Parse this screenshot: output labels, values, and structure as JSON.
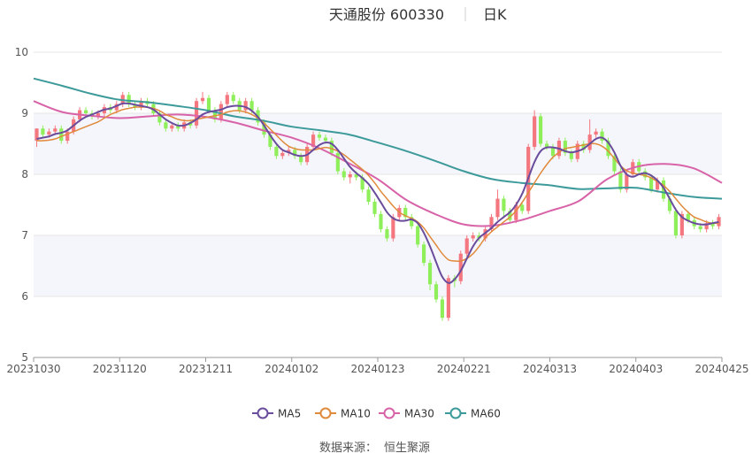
{
  "header": {
    "title": "天通股份 600330",
    "period": "日K"
  },
  "source": {
    "label": "数据来源：",
    "name": "恒生聚源"
  },
  "colors": {
    "up": "#f4777f",
    "down": "#8fef5a",
    "ma5": "#6a4c9c",
    "ma10": "#e08a3c",
    "ma30": "#d863a8",
    "ma60": "#3d9a9a",
    "band": "#f5f6fb",
    "grid": "#e6e6e6",
    "axis": "#999999",
    "text": "#555555"
  },
  "chart_data": {
    "type": "candlestick",
    "ylim": [
      5,
      10
    ],
    "yticks": [
      5,
      6,
      7,
      8,
      9,
      10
    ],
    "xlabels": [
      "20231030",
      "20231120",
      "20231211",
      "20240102",
      "20240123",
      "20240221",
      "20240313",
      "20240403",
      "20240425"
    ],
    "legend_position": "bottom",
    "series": [
      {
        "name": "MA5",
        "key": "ma5"
      },
      {
        "name": "MA10",
        "key": "ma10"
      },
      {
        "name": "MA30",
        "key": "ma30"
      },
      {
        "name": "MA60",
        "key": "ma60"
      }
    ],
    "candles": [
      [
        8.55,
        8.75,
        8.75,
        8.45
      ],
      [
        8.75,
        8.65,
        8.8,
        8.6
      ],
      [
        8.65,
        8.7,
        8.75,
        8.6
      ],
      [
        8.7,
        8.75,
        8.8,
        8.65
      ],
      [
        8.75,
        8.55,
        8.8,
        8.5
      ],
      [
        8.55,
        8.7,
        8.75,
        8.5
      ],
      [
        8.7,
        8.9,
        8.95,
        8.65
      ],
      [
        8.9,
        9.05,
        9.1,
        8.85
      ],
      [
        9.05,
        9.0,
        9.1,
        8.95
      ],
      [
        9.0,
        8.95,
        9.05,
        8.9
      ],
      [
        8.95,
        9.0,
        9.05,
        8.9
      ],
      [
        9.0,
        9.1,
        9.15,
        8.95
      ],
      [
        9.1,
        9.05,
        9.15,
        9.0
      ],
      [
        9.05,
        9.15,
        9.2,
        9.0
      ],
      [
        9.15,
        9.3,
        9.35,
        9.1
      ],
      [
        9.3,
        9.15,
        9.35,
        9.1
      ],
      [
        9.15,
        9.1,
        9.2,
        9.05
      ],
      [
        9.1,
        9.2,
        9.25,
        9.05
      ],
      [
        9.2,
        9.15,
        9.25,
        9.1
      ],
      [
        9.15,
        9.0,
        9.2,
        8.95
      ],
      [
        9.0,
        8.85,
        9.05,
        8.8
      ],
      [
        8.85,
        8.75,
        8.9,
        8.7
      ],
      [
        8.75,
        8.8,
        8.85,
        8.7
      ],
      [
        8.8,
        8.75,
        8.85,
        8.7
      ],
      [
        8.75,
        8.85,
        8.9,
        8.7
      ],
      [
        8.85,
        8.8,
        8.9,
        8.75
      ],
      [
        8.8,
        9.2,
        9.25,
        8.75
      ],
      [
        9.2,
        9.25,
        9.35,
        9.15
      ],
      [
        9.25,
        9.05,
        9.3,
        9.0
      ],
      [
        9.05,
        8.9,
        9.1,
        8.85
      ],
      [
        8.9,
        9.15,
        9.2,
        8.85
      ],
      [
        9.15,
        9.3,
        9.35,
        9.1
      ],
      [
        9.3,
        9.2,
        9.35,
        9.15
      ],
      [
        9.2,
        9.05,
        9.25,
        9.0
      ],
      [
        9.05,
        9.2,
        9.25,
        9.0
      ],
      [
        9.2,
        9.05,
        9.25,
        9.0
      ],
      [
        9.05,
        8.85,
        9.1,
        8.8
      ],
      [
        8.85,
        8.65,
        8.9,
        8.6
      ],
      [
        8.65,
        8.45,
        8.7,
        8.4
      ],
      [
        8.45,
        8.3,
        8.5,
        8.25
      ],
      [
        8.3,
        8.35,
        8.4,
        8.25
      ],
      [
        8.35,
        8.4,
        8.45,
        8.3
      ],
      [
        8.4,
        8.3,
        8.45,
        8.25
      ],
      [
        8.3,
        8.2,
        8.35,
        8.15
      ],
      [
        8.2,
        8.45,
        8.5,
        8.15
      ],
      [
        8.45,
        8.65,
        8.7,
        8.4
      ],
      [
        8.65,
        8.6,
        8.7,
        8.55
      ],
      [
        8.6,
        8.55,
        8.65,
        8.5
      ],
      [
        8.55,
        8.35,
        8.6,
        8.3
      ],
      [
        8.35,
        8.05,
        8.4,
        8.0
      ],
      [
        8.05,
        7.95,
        8.1,
        7.9
      ],
      [
        7.95,
        8.0,
        8.05,
        7.85
      ],
      [
        8.0,
        7.95,
        8.05,
        7.9
      ],
      [
        7.95,
        7.75,
        8.0,
        7.7
      ],
      [
        7.75,
        7.55,
        7.8,
        7.5
      ],
      [
        7.55,
        7.35,
        7.6,
        7.3
      ],
      [
        7.35,
        7.1,
        7.4,
        7.05
      ],
      [
        7.1,
        6.95,
        7.15,
        6.9
      ],
      [
        6.95,
        7.3,
        7.35,
        6.9
      ],
      [
        7.3,
        7.45,
        7.5,
        7.25
      ],
      [
        7.45,
        7.3,
        7.5,
        7.25
      ],
      [
        7.3,
        7.15,
        7.35,
        7.1
      ],
      [
        7.15,
        6.85,
        7.2,
        6.8
      ],
      [
        6.85,
        6.55,
        6.9,
        6.5
      ],
      [
        6.55,
        6.2,
        6.6,
        6.1
      ],
      [
        6.2,
        5.95,
        6.25,
        5.9
      ],
      [
        5.95,
        5.65,
        6.0,
        5.6
      ],
      [
        5.65,
        6.3,
        6.35,
        5.6
      ],
      [
        6.3,
        6.25,
        6.35,
        6.15
      ],
      [
        6.25,
        6.7,
        6.75,
        6.2
      ],
      [
        6.7,
        6.95,
        7.0,
        6.65
      ],
      [
        6.95,
        7.0,
        7.05,
        6.9
      ],
      [
        7.0,
        6.95,
        7.05,
        6.9
      ],
      [
        6.95,
        7.1,
        7.15,
        6.9
      ],
      [
        7.1,
        7.3,
        7.35,
        7.05
      ],
      [
        7.3,
        7.6,
        7.75,
        7.25
      ],
      [
        7.6,
        7.4,
        7.65,
        7.3
      ],
      [
        7.4,
        7.25,
        7.45,
        7.2
      ],
      [
        7.25,
        7.5,
        7.55,
        7.2
      ],
      [
        7.5,
        7.4,
        7.55,
        7.35
      ],
      [
        7.4,
        8.45,
        8.5,
        7.35
      ],
      [
        8.45,
        8.95,
        9.05,
        8.4
      ],
      [
        8.95,
        8.5,
        9.0,
        8.45
      ],
      [
        8.5,
        8.45,
        8.55,
        8.4
      ],
      [
        8.45,
        8.3,
        8.5,
        8.25
      ],
      [
        8.3,
        8.55,
        8.6,
        8.25
      ],
      [
        8.55,
        8.35,
        8.6,
        8.3
      ],
      [
        8.35,
        8.25,
        8.4,
        8.2
      ],
      [
        8.25,
        8.5,
        8.55,
        8.2
      ],
      [
        8.5,
        8.4,
        8.55,
        8.35
      ],
      [
        8.4,
        8.65,
        8.9,
        8.35
      ],
      [
        8.65,
        8.7,
        8.75,
        8.6
      ],
      [
        8.7,
        8.55,
        8.75,
        8.5
      ],
      [
        8.55,
        8.3,
        8.6,
        8.25
      ],
      [
        8.3,
        8.05,
        8.35,
        8.0
      ],
      [
        8.05,
        7.75,
        8.1,
        7.7
      ],
      [
        7.75,
        8.0,
        8.05,
        7.7
      ],
      [
        8.0,
        8.2,
        8.25,
        7.95
      ],
      [
        8.2,
        8.05,
        8.25,
        8.0
      ],
      [
        8.05,
        7.95,
        8.1,
        7.9
      ],
      [
        7.95,
        7.75,
        8.0,
        7.7
      ],
      [
        7.75,
        7.9,
        7.95,
        7.7
      ],
      [
        7.9,
        7.6,
        7.95,
        7.55
      ],
      [
        7.6,
        7.4,
        7.65,
        7.35
      ],
      [
        7.4,
        7.0,
        7.45,
        6.95
      ],
      [
        7.0,
        7.35,
        7.4,
        6.95
      ],
      [
        7.35,
        7.25,
        7.4,
        7.2
      ],
      [
        7.25,
        7.15,
        7.3,
        7.1
      ],
      [
        7.15,
        7.1,
        7.2,
        7.05
      ],
      [
        7.1,
        7.2,
        7.25,
        7.05
      ],
      [
        7.2,
        7.15,
        7.25,
        7.1
      ],
      [
        7.15,
        7.3,
        7.35,
        7.1
      ]
    ],
    "ma5": [
      8.58,
      8.6,
      8.62,
      8.66,
      8.68,
      8.72,
      8.8,
      8.88,
      8.94,
      8.98,
      9.02,
      9.06,
      9.08,
      9.12,
      9.16,
      9.16,
      9.14,
      9.12,
      9.1,
      9.06,
      8.98,
      8.9,
      8.84,
      8.8,
      8.8,
      8.84,
      8.9,
      8.98,
      9.02,
      9.04,
      9.06,
      9.1,
      9.12,
      9.12,
      9.1,
      9.04,
      8.94,
      8.8,
      8.64,
      8.5,
      8.4,
      8.36,
      8.32,
      8.3,
      8.32,
      8.4,
      8.48,
      8.52,
      8.5,
      8.4,
      8.26,
      8.12,
      8.02,
      7.94,
      7.84,
      7.7,
      7.54,
      7.38,
      7.28,
      7.24,
      7.24,
      7.26,
      7.2,
      7.04,
      6.82,
      6.56,
      6.32,
      6.22,
      6.28,
      6.42,
      6.62,
      6.82,
      6.96,
      7.04,
      7.12,
      7.22,
      7.3,
      7.38,
      7.5,
      7.68,
      7.94,
      8.2,
      8.38,
      8.44,
      8.44,
      8.42,
      8.38,
      8.36,
      8.38,
      8.42,
      8.5,
      8.58,
      8.6,
      8.52,
      8.36,
      8.14,
      8.0,
      7.96,
      8.0,
      8.02,
      7.98,
      7.9,
      7.78,
      7.6,
      7.42,
      7.3,
      7.24,
      7.2,
      7.18,
      7.18,
      7.2,
      7.22
    ],
    "ma10": [
      8.55,
      8.55,
      8.56,
      8.58,
      8.62,
      8.66,
      8.7,
      8.74,
      8.78,
      8.82,
      8.86,
      8.92,
      8.98,
      9.02,
      9.06,
      9.08,
      9.1,
      9.1,
      9.1,
      9.08,
      9.04,
      8.98,
      8.94,
      8.9,
      8.88,
      8.88,
      8.9,
      8.92,
      8.94,
      8.96,
      8.98,
      9.02,
      9.04,
      9.04,
      9.02,
      8.98,
      8.92,
      8.84,
      8.74,
      8.64,
      8.54,
      8.46,
      8.42,
      8.4,
      8.4,
      8.4,
      8.42,
      8.44,
      8.42,
      8.38,
      8.32,
      8.24,
      8.16,
      8.08,
      7.98,
      7.86,
      7.72,
      7.6,
      7.48,
      7.38,
      7.32,
      7.28,
      7.22,
      7.12,
      6.98,
      6.84,
      6.7,
      6.6,
      6.58,
      6.58,
      6.62,
      6.7,
      6.82,
      6.96,
      7.06,
      7.14,
      7.22,
      7.3,
      7.4,
      7.54,
      7.7,
      7.86,
      8.02,
      8.16,
      8.28,
      8.36,
      8.42,
      8.44,
      8.46,
      8.48,
      8.5,
      8.5,
      8.46,
      8.38,
      8.26,
      8.14,
      8.06,
      8.02,
      8.0,
      7.98,
      7.94,
      7.88,
      7.82,
      7.72,
      7.6,
      7.48,
      7.38,
      7.3,
      7.26,
      7.22,
      7.2,
      7.2
    ]
  }
}
